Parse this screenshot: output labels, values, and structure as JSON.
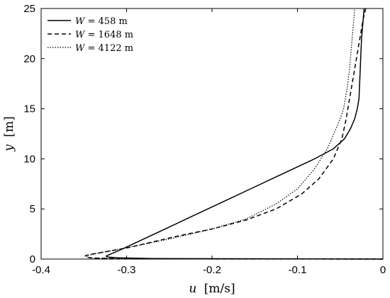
{
  "chart_data": {
    "type": "line",
    "xlabel": {
      "var": "u",
      "unit": "[m/s]"
    },
    "ylabel": {
      "var": "y",
      "unit": "[m]"
    },
    "xlim": [
      -0.4,
      0
    ],
    "ylim": [
      0,
      25
    ],
    "xticks": [
      -0.4,
      -0.3,
      -0.2,
      -0.1,
      0
    ],
    "xtick_labels": [
      "-0.4",
      "-0.3",
      "-0.2",
      "-0.1",
      "0"
    ],
    "yticks": [
      0,
      5,
      10,
      15,
      20,
      25
    ],
    "ytick_labels": [
      "0",
      "5",
      "10",
      "15",
      "20",
      "25"
    ],
    "grid": false,
    "legend_position": "top-left",
    "series": [
      {
        "name": "W = 458 m",
        "name_var": "W",
        "name_rest": " = 458 m",
        "style": "solid",
        "color": "#000000",
        "points": [
          [
            0.0,
            0.0
          ],
          [
            -0.27,
            0.05
          ],
          [
            -0.31,
            0.12
          ],
          [
            -0.322,
            0.2
          ],
          [
            -0.324,
            0.3
          ],
          [
            -0.32,
            0.45
          ],
          [
            -0.305,
            1.0
          ],
          [
            -0.28,
            2.0
          ],
          [
            -0.255,
            3.0
          ],
          [
            -0.23,
            4.0
          ],
          [
            -0.205,
            5.0
          ],
          [
            -0.18,
            6.0
          ],
          [
            -0.155,
            7.0
          ],
          [
            -0.13,
            8.0
          ],
          [
            -0.105,
            9.0
          ],
          [
            -0.08,
            10.0
          ],
          [
            -0.058,
            11.0
          ],
          [
            -0.045,
            12.0
          ],
          [
            -0.038,
            13.0
          ],
          [
            -0.033,
            14.0
          ],
          [
            -0.03,
            15.0
          ],
          [
            -0.028,
            16.0
          ],
          [
            -0.027,
            18.0
          ],
          [
            -0.026,
            20.0
          ],
          [
            -0.025,
            22.0
          ],
          [
            -0.023,
            24.0
          ],
          [
            -0.022,
            25.0
          ]
        ]
      },
      {
        "name": "W = 1648 m",
        "name_var": "W",
        "name_rest": " = 1648 m",
        "style": "dashed",
        "color": "#000000",
        "points": [
          [
            0.0,
            0.0
          ],
          [
            -0.3,
            0.02
          ],
          [
            -0.34,
            0.1
          ],
          [
            -0.348,
            0.2
          ],
          [
            -0.348,
            0.35
          ],
          [
            -0.34,
            0.5
          ],
          [
            -0.32,
            0.8
          ],
          [
            -0.3,
            1.1
          ],
          [
            -0.275,
            1.6
          ],
          [
            -0.24,
            2.3
          ],
          [
            -0.2,
            3.0
          ],
          [
            -0.16,
            3.9
          ],
          [
            -0.125,
            5.0
          ],
          [
            -0.095,
            6.5
          ],
          [
            -0.075,
            8.0
          ],
          [
            -0.058,
            10.0
          ],
          [
            -0.048,
            12.0
          ],
          [
            -0.043,
            14.0
          ],
          [
            -0.039,
            16.0
          ],
          [
            -0.035,
            18.0
          ],
          [
            -0.031,
            20.0
          ],
          [
            -0.027,
            22.0
          ],
          [
            -0.023,
            24.0
          ],
          [
            -0.02,
            25.0
          ]
        ]
      },
      {
        "name": "W = 4122 m",
        "name_var": "W",
        "name_rest": " = 4122 m",
        "style": "dotted",
        "color": "#000000",
        "points": [
          [
            0.0,
            0.0
          ],
          [
            -0.3,
            0.02
          ],
          [
            -0.34,
            0.1
          ],
          [
            -0.346,
            0.2
          ],
          [
            -0.346,
            0.35
          ],
          [
            -0.338,
            0.5
          ],
          [
            -0.32,
            0.8
          ],
          [
            -0.29,
            1.3
          ],
          [
            -0.25,
            2.0
          ],
          [
            -0.2,
            3.0
          ],
          [
            -0.16,
            4.0
          ],
          [
            -0.125,
            5.5
          ],
          [
            -0.1,
            7.0
          ],
          [
            -0.08,
            9.0
          ],
          [
            -0.065,
            11.0
          ],
          [
            -0.055,
            13.0
          ],
          [
            -0.05,
            14.0
          ],
          [
            -0.046,
            15.0
          ],
          [
            -0.042,
            17.0
          ],
          [
            -0.039,
            19.0
          ],
          [
            -0.037,
            21.0
          ],
          [
            -0.035,
            23.0
          ],
          [
            -0.033,
            25.0
          ]
        ]
      }
    ]
  }
}
